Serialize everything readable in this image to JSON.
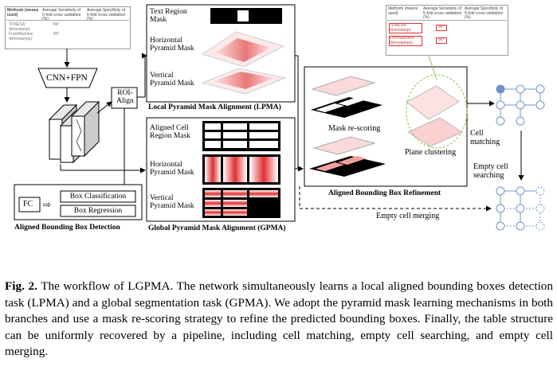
{
  "figure": {
    "results_table": {
      "headers": [
        "Methods (means used)",
        "Average Sensitivity of 5-fold cross validation (%)",
        "Average Specificity of 5-fold cross validation (%)"
      ],
      "rows": [
        [
          "TDNESA (timestamp)",
          "84*",
          ""
        ],
        [
          "FromMachine (timestamps)",
          "86*",
          ""
        ]
      ]
    },
    "zoom_table": {
      "headers": [
        "Methods (means used)",
        "Average Sensitivity of 5-fold cross validation (%)",
        "Average Specificity of 5-fold cross validation (%)"
      ],
      "rows": [
        [
          "TDNESA (timestamp)",
          "84*",
          ""
        ],
        [
          "FromMachine (timestamps)",
          "86*",
          ""
        ]
      ]
    },
    "backbone_label": "CNN+FPN",
    "roi_label": "ROI-\nAlign",
    "fc_label": "FC",
    "box_classification_label": "Box Classification",
    "box_regression_label": "Box Regression",
    "abbd_title": "Aligned Bounding Box Detection",
    "lpma": {
      "text_region_mask": "Text Region\nMask",
      "horizontal_mask": "Horizontal\nPyramid Mask",
      "vertical_mask": "Vertical\nPyramid Mask",
      "title": "Local Pyramid Mask Alignment (LPMA)"
    },
    "gpma": {
      "aligned_cell_mask": "Aligned Cell\nRegion  Mask",
      "horizontal_mask": "Horizontal\nPyramid Mask",
      "vertical_mask": "Vertical\nPyramid Mask",
      "title": "Global Pyramid Mask Alignment (GPMA)"
    },
    "refinement": {
      "mask_rescoring": "Mask re-scoring",
      "plane_clustering": "Plane clustering",
      "title": "Aligned Bounding Box Refinement"
    },
    "pipeline": {
      "cell_matching": "Cell\nmatching",
      "empty_cell_searching": "Empty cell\nsearching",
      "empty_cell_merging": "Empty cell merging"
    },
    "colors": {
      "red": "#e03030",
      "pink": "#f7c6c6",
      "node": "#6f95c8",
      "green_dash": "#8bc34a"
    }
  },
  "caption": {
    "label": "Fig. 2.",
    "text": " The workflow of LGPMA. The network simultaneously learns a local aligned bounding boxes detection task (LPMA) and a global segmentation task (GPMA). We adopt the pyramid mask learning mechanisms in both branches and use a mask re-scoring strategy to refine the predicted bounding boxes. Finally, the table structure can be uniformly recovered by a pipeline, including cell matching, empty cell searching, and empty cell merging."
  }
}
